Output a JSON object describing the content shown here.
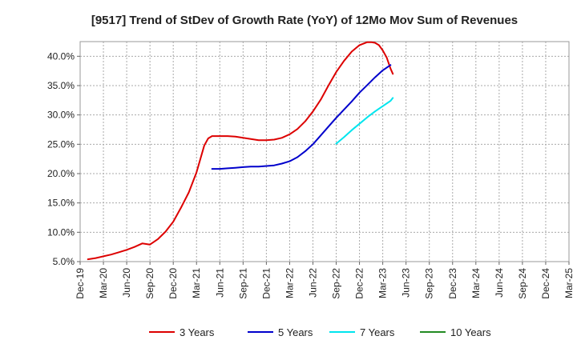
{
  "chart_data": {
    "type": "line",
    "title": "[9517]  Trend of StDev of Growth Rate (YoY) of 12Mo Mov Sum of Revenues",
    "xlabel": "",
    "ylabel": "",
    "ylim": [
      5,
      42.5
    ],
    "grid": true,
    "x_ticks": [
      "Dec-19",
      "Mar-20",
      "Jun-20",
      "Sep-20",
      "Dec-20",
      "Mar-21",
      "Jun-21",
      "Sep-21",
      "Dec-21",
      "Mar-22",
      "Jun-22",
      "Sep-22",
      "Dec-22",
      "Mar-23",
      "Jun-23",
      "Sep-23",
      "Dec-23",
      "Mar-24",
      "Jun-24",
      "Sep-24",
      "Dec-24",
      "Mar-25"
    ],
    "y_ticks": [
      5,
      10,
      15,
      20,
      25,
      30,
      35,
      40
    ],
    "y_tick_labels": [
      "5.0%",
      "10.0%",
      "15.0%",
      "20.0%",
      "25.0%",
      "30.0%",
      "35.0%",
      "40.0%"
    ],
    "legend_position": "bottom",
    "series": [
      {
        "name": "3 Years",
        "color": "#dd0000",
        "points": [
          [
            1,
            5.4
          ],
          [
            2,
            5.6
          ],
          [
            3,
            5.9
          ],
          [
            4,
            6.2
          ],
          [
            5,
            6.6
          ],
          [
            6,
            7.0
          ],
          [
            7,
            7.5
          ],
          [
            8,
            8.1
          ],
          [
            9,
            7.9
          ],
          [
            10,
            8.8
          ],
          [
            11,
            10.1
          ],
          [
            12,
            11.8
          ],
          [
            13,
            14.2
          ],
          [
            14,
            16.8
          ],
          [
            15,
            20.2
          ],
          [
            16,
            24.8
          ],
          [
            16.5,
            26.0
          ],
          [
            17,
            26.4
          ],
          [
            18,
            26.4
          ],
          [
            19,
            26.4
          ],
          [
            20,
            26.3
          ],
          [
            21,
            26.1
          ],
          [
            22,
            25.9
          ],
          [
            23,
            25.7
          ],
          [
            24,
            25.7
          ],
          [
            25,
            25.8
          ],
          [
            26,
            26.1
          ],
          [
            27,
            26.7
          ],
          [
            28,
            27.6
          ],
          [
            29,
            28.9
          ],
          [
            30,
            30.6
          ],
          [
            31,
            32.6
          ],
          [
            32,
            35.0
          ],
          [
            33,
            37.3
          ],
          [
            34,
            39.2
          ],
          [
            35,
            40.8
          ],
          [
            36,
            41.9
          ],
          [
            37,
            42.4
          ],
          [
            37.5,
            42.4
          ],
          [
            38,
            42.3
          ],
          [
            38.5,
            41.9
          ],
          [
            39,
            41.0
          ],
          [
            39.5,
            39.8
          ],
          [
            40,
            37.9
          ],
          [
            40.3,
            37.0
          ]
        ]
      },
      {
        "name": "5 Years",
        "color": "#0000cc",
        "points": [
          [
            17,
            20.8
          ],
          [
            18,
            20.8
          ],
          [
            19,
            20.9
          ],
          [
            20,
            21.0
          ],
          [
            21,
            21.1
          ],
          [
            22,
            21.2
          ],
          [
            23,
            21.2
          ],
          [
            24,
            21.3
          ],
          [
            25,
            21.4
          ],
          [
            26,
            21.7
          ],
          [
            27,
            22.1
          ],
          [
            28,
            22.8
          ],
          [
            29,
            23.8
          ],
          [
            30,
            25.0
          ],
          [
            31,
            26.5
          ],
          [
            32,
            28.0
          ],
          [
            33,
            29.5
          ],
          [
            34,
            30.9
          ],
          [
            35,
            32.3
          ],
          [
            36,
            33.8
          ],
          [
            37,
            35.1
          ],
          [
            38,
            36.4
          ],
          [
            39,
            37.6
          ],
          [
            40,
            38.5
          ]
        ]
      },
      {
        "name": "7 Years",
        "color": "#00e5ee",
        "points": [
          [
            33,
            25.1
          ],
          [
            34,
            26.2
          ],
          [
            35,
            27.4
          ],
          [
            36,
            28.5
          ],
          [
            37,
            29.6
          ],
          [
            38,
            30.6
          ],
          [
            39,
            31.5
          ],
          [
            40,
            32.4
          ],
          [
            40.3,
            32.9
          ]
        ]
      },
      {
        "name": "10 Years",
        "color": "#228b22",
        "points": []
      }
    ]
  }
}
